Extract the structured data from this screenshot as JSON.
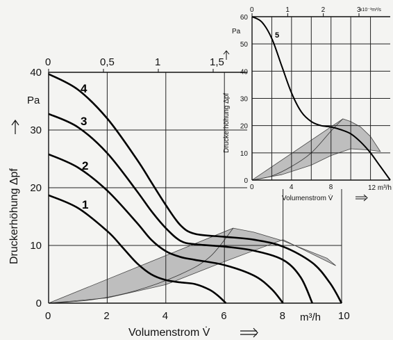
{
  "chart_data": [
    {
      "type": "line",
      "ylabel": "Druckerhöhung  Δpf",
      "y_unit": "Pa",
      "xlabel": "Volumenstrom  V̇",
      "x_unit": "m³/h",
      "xlim": [
        0,
        10
      ],
      "ylim": [
        0,
        40
      ],
      "x_ticks": [
        "0",
        "2",
        "4",
        "6",
        "8",
        "10"
      ],
      "y_ticks": [
        "0",
        "10",
        "20",
        "30",
        "40"
      ],
      "top_ticks": [
        "0",
        "0,5",
        "1",
        "1,5"
      ],
      "grid": true,
      "series": [
        {
          "name": "1",
          "points": [
            [
              0,
              18.7
            ],
            [
              1,
              16.5
            ],
            [
              2,
              12.5
            ],
            [
              2.5,
              9.8
            ],
            [
              3,
              7
            ],
            [
              3.5,
              5
            ],
            [
              4,
              4
            ],
            [
              4.5,
              3.6
            ],
            [
              5,
              3.3
            ],
            [
              5.5,
              2.3
            ],
            [
              5.8,
              1.2
            ],
            [
              6.05,
              0
            ]
          ]
        },
        {
          "name": "2",
          "points": [
            [
              0,
              25.8
            ],
            [
              1,
              23.5
            ],
            [
              2,
              19.5
            ],
            [
              3,
              14
            ],
            [
              3.5,
              11
            ],
            [
              4,
              9
            ],
            [
              4.5,
              8
            ],
            [
              5,
              7.5
            ],
            [
              6,
              6.6
            ],
            [
              7,
              4.8
            ],
            [
              7.6,
              2.5
            ],
            [
              8,
              0
            ]
          ]
        },
        {
          "name": "3",
          "points": [
            [
              0,
              32.8
            ],
            [
              1,
              30.5
            ],
            [
              2,
              26
            ],
            [
              3,
              19.5
            ],
            [
              3.5,
              16
            ],
            [
              4,
              13
            ],
            [
              4.5,
              10.8
            ],
            [
              5,
              10.2
            ],
            [
              6,
              9.8
            ],
            [
              7,
              9.1
            ],
            [
              8,
              7.5
            ],
            [
              8.6,
              4.5
            ],
            [
              9,
              0
            ]
          ]
        },
        {
          "name": "4",
          "points": [
            [
              0,
              39.7
            ],
            [
              1,
              37
            ],
            [
              2,
              32
            ],
            [
              3,
              25
            ],
            [
              3.5,
              21
            ],
            [
              4,
              17
            ],
            [
              4.5,
              13.5
            ],
            [
              5,
              12
            ],
            [
              6,
              11.5
            ],
            [
              7,
              11
            ],
            [
              8,
              9.8
            ],
            [
              9,
              7
            ],
            [
              9.6,
              3.5
            ],
            [
              10,
              0
            ]
          ]
        }
      ],
      "shaded_region": {
        "upper": [
          [
            6.3,
            13
          ],
          [
            7,
            12.3
          ],
          [
            8,
            10.8
          ],
          [
            9,
            8.8
          ],
          [
            9.5,
            7.8
          ],
          [
            9.8,
            6.5
          ]
        ],
        "lower": [
          [
            0,
            0
          ],
          [
            2,
            0.9
          ],
          [
            4,
            3.2
          ],
          [
            6,
            7.2
          ],
          [
            8,
            11
          ],
          [
            9.8,
            6.5
          ]
        ],
        "left_edge": [
          [
            6.3,
            13
          ],
          [
            5.5,
            8
          ],
          [
            4.5,
            5
          ],
          [
            3,
            2.2
          ],
          [
            1.5,
            0.6
          ],
          [
            0,
            0
          ]
        ]
      },
      "labels": {
        "y_unit": "Pa",
        "x_unit": "m³/h"
      }
    },
    {
      "type": "line",
      "ylabel": "Druckerhöhung  Δpf",
      "y_unit": "Pa",
      "xlabel": "Volumenstrom  V̇",
      "x_unit": "12 m³/h",
      "xlim": [
        0,
        14
      ],
      "ylim": [
        0,
        60
      ],
      "x_ticks": [
        "0",
        "4",
        "8"
      ],
      "y_ticks": [
        "0",
        "10",
        "20",
        "30",
        "40",
        "50",
        "60"
      ],
      "top_ticks": [
        "0",
        "1",
        "2",
        "3"
      ],
      "top_unit": "x10⁻³m³/s",
      "grid": true,
      "series": [
        {
          "name": "5",
          "points": [
            [
              0,
              60
            ],
            [
              1,
              58
            ],
            [
              2,
              52
            ],
            [
              3,
              42
            ],
            [
              4,
              32
            ],
            [
              5,
              25
            ],
            [
              6,
              21.5
            ],
            [
              7,
              20
            ],
            [
              8,
              19.5
            ],
            [
              9,
              18.5
            ],
            [
              10,
              17
            ],
            [
              11,
              14
            ],
            [
              12,
              10
            ],
            [
              13,
              5
            ],
            [
              14,
              0
            ]
          ]
        }
      ],
      "shaded_region": {
        "upper": [
          [
            9.2,
            22.5
          ],
          [
            10,
            21.5
          ],
          [
            11,
            19.5
          ],
          [
            12,
            16
          ],
          [
            13,
            10.5
          ]
        ],
        "lower": [
          [
            0,
            0
          ],
          [
            3,
            2
          ],
          [
            6,
            5.5
          ],
          [
            8,
            9
          ],
          [
            10,
            11.5
          ],
          [
            12,
            11
          ],
          [
            13,
            10.5
          ]
        ],
        "left_edge": [
          [
            9.2,
            22.5
          ],
          [
            8,
            18
          ],
          [
            6,
            10
          ],
          [
            4,
            5
          ],
          [
            2,
            1.5
          ],
          [
            0,
            0
          ]
        ]
      }
    }
  ],
  "text": {
    "main_title_axis_y": "Druckerhöhung  Δpf",
    "main_title_axis_x": "Volumenstrom  V̇",
    "main_unit_y": "Pa",
    "main_unit_x": "m³/h",
    "inset_unit_y": "Pa",
    "inset_unit_x": "12 m³/h",
    "inset_top_unit": "x10⁻³m³/s"
  }
}
